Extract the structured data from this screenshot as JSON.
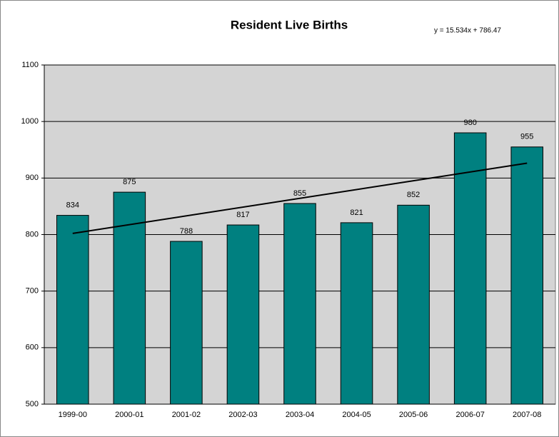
{
  "chart_data": {
    "type": "bar",
    "title": "Resident Live Births",
    "categories": [
      "1999-00",
      "2000-01",
      "2001-02",
      "2002-03",
      "2003-04",
      "2004-05",
      "2005-06",
      "2006-07",
      "2007-08"
    ],
    "values": [
      834,
      875,
      788,
      817,
      855,
      821,
      852,
      980,
      955
    ],
    "color": "#008080",
    "ylim": [
      500,
      1100
    ],
    "yticks": [
      500,
      600,
      700,
      800,
      900,
      1000,
      1100
    ],
    "grid": true,
    "trendline": {
      "slope": 15.534,
      "intercept": 786.47,
      "label": "y = 15.534x + 786.47"
    }
  }
}
